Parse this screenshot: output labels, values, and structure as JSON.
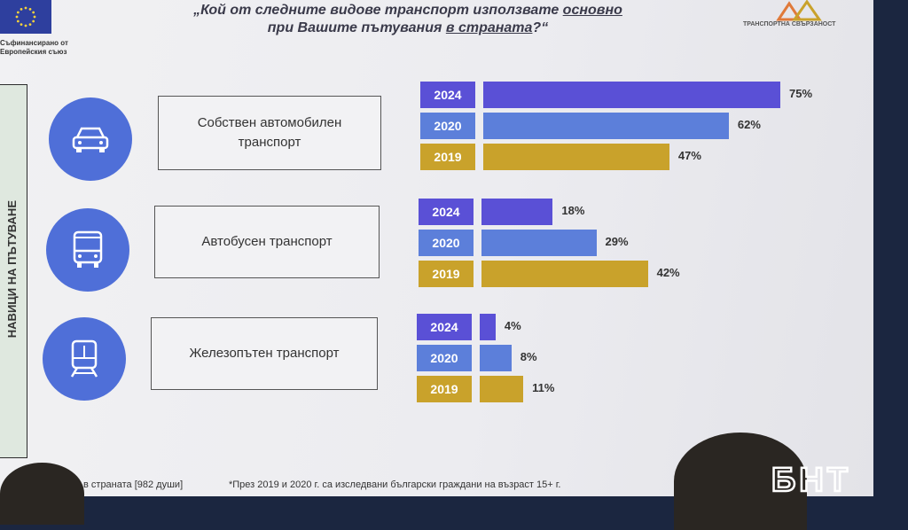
{
  "header": {
    "title_line1_pre": "„Кой от следните видове транспорт използвате ",
    "title_line1_emph": "основно",
    "title_line2_pre": "при Вашите пътувания ",
    "title_line2_emph": "в страната",
    "title_line2_post": "?“",
    "eu_caption_line1": "Съфинансирано от",
    "eu_caption_line2": "Европейския съюз",
    "logo_caption": "ТРАНСПОРТНА СВЪРЗАНОСТ"
  },
  "side_panel": {
    "text": "НАВИЦИ НА ПЪТУВАНЕ"
  },
  "colors": {
    "y2024": "#5a50d6",
    "y2020": "#5c7fda",
    "y2019": "#c9a22b",
    "icon_bg": "#4f6fd8"
  },
  "chart_data": {
    "type": "bar",
    "orientation": "horizontal",
    "title": "„Кой от следните видове транспорт използвате основно при Вашите пътувания в страната?“",
    "categories": [
      "Собствен автомобилен транспорт",
      "Автобусен транспорт",
      "Железопътен транспорт"
    ],
    "category_lines": [
      [
        "Собствен автомобилен",
        "транспорт"
      ],
      [
        "Автобусен транспорт"
      ],
      [
        "Железопътен транспорт"
      ]
    ],
    "category_icons": [
      "car-icon",
      "bus-icon",
      "train-icon"
    ],
    "series": [
      {
        "name": "2024",
        "values": [
          75,
          18,
          4
        ],
        "labels": [
          "75%",
          "18%",
          "4%"
        ]
      },
      {
        "name": "2020",
        "values": [
          62,
          29,
          8
        ],
        "labels": [
          "62%",
          "29%",
          "8%"
        ]
      },
      {
        "name": "2019",
        "values": [
          47,
          42,
          11
        ],
        "labels": [
          "47%",
          "42%",
          "11%"
        ]
      }
    ],
    "unit": "%",
    "xlim": [
      0,
      75
    ]
  },
  "footer": {
    "left_note": "в страната [982 души]",
    "right_note": "*През 2019 и 2020 г. са изследвани български граждани на възраст 15+ г.",
    "watermark": "БНТ"
  }
}
